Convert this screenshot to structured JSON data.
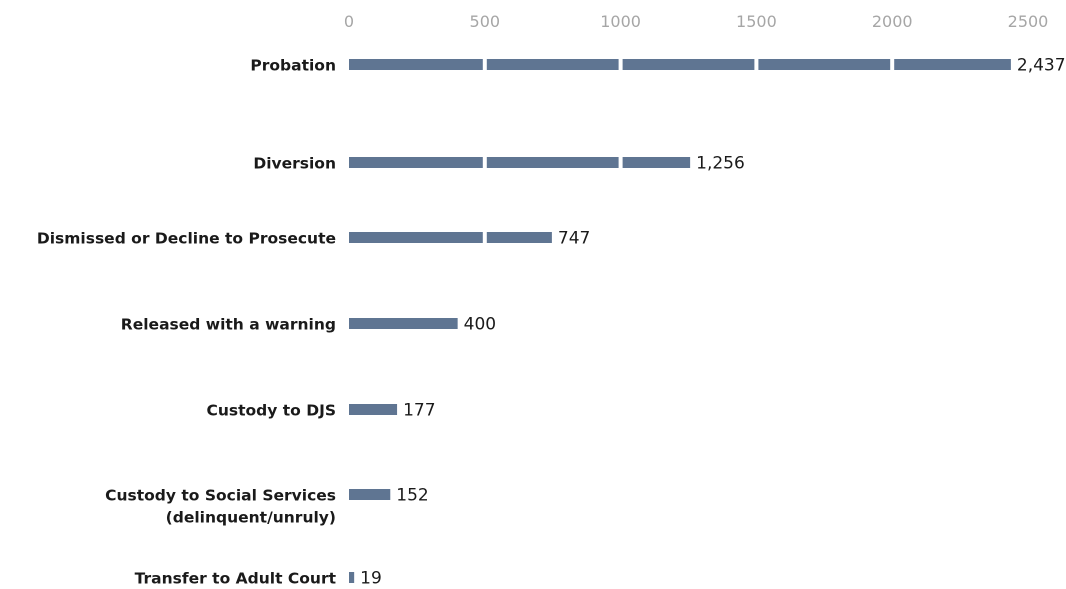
{
  "chart_data": {
    "type": "bar",
    "orientation": "horizontal",
    "categories": [
      [
        "Probation"
      ],
      [
        "Diversion"
      ],
      [
        "Dismissed or Decline to Prosecute"
      ],
      [
        "Released with a warning"
      ],
      [
        "Custody to DJS"
      ],
      [
        "Custody to Social Services",
        "(delinquent/unruly)"
      ],
      [
        "Transfer to Adult Court"
      ]
    ],
    "values": [
      2437,
      1256,
      747,
      400,
      177,
      152,
      19
    ],
    "value_labels": [
      "2,437",
      "1,256",
      "747",
      "400",
      "177",
      "152",
      "19"
    ],
    "x_ticks": [
      "0",
      "500",
      "1000",
      "1500",
      "2000",
      "2500"
    ],
    "xlim": [
      0,
      2500
    ],
    "x_axis_position": "top",
    "grid": true,
    "grid_style": "white gaps through bars",
    "bar_color": "#5f7592",
    "title": "",
    "xlabel": "",
    "ylabel": ""
  }
}
